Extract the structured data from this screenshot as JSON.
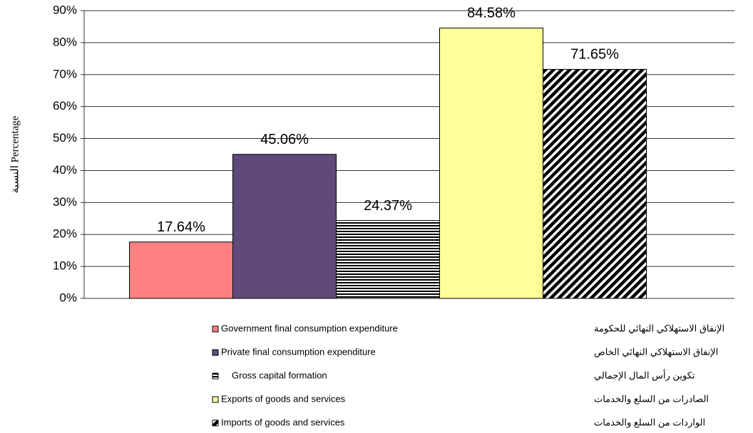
{
  "chart_data": {
    "type": "bar",
    "y_label": "النسبة Percentage",
    "categories": [
      null
    ],
    "series": [
      {
        "name": "Government final consumption expenditure",
        "name_ar": "الإنفاق الاستهلاكي النهائي للحكومة",
        "color": "#ff8080",
        "values": [
          17.64
        ],
        "value_labels": [
          "17.64%"
        ]
      },
      {
        "name": "Private final consumption expenditure",
        "name_ar": "الإنفاق الاستهلاكي النهائي الخاص",
        "color": "#604a7b",
        "values": [
          45.06
        ],
        "value_labels": [
          "45.06%"
        ]
      },
      {
        "name": "Gross capital formation",
        "name_ar": "تكوين رأس المال الإجمالي",
        "color": "#000000",
        "pattern": "horizontal-lines",
        "values": [
          24.37
        ],
        "value_labels": [
          "24.37%"
        ]
      },
      {
        "name": "Exports of goods and services",
        "name_ar": "الصادرات من السلع والخدمات",
        "color": "#ffff99",
        "values": [
          84.58
        ],
        "value_labels": [
          "84.58%"
        ]
      },
      {
        "name": "Imports of goods and services",
        "name_ar": "الواردات من السلع والخدمات",
        "color": "#4f7fc0",
        "pattern": "diagonal-lines",
        "values": [
          71.65
        ],
        "value_labels": [
          "71.65%"
        ]
      }
    ],
    "ylim": [
      0,
      90
    ],
    "yticks": [
      {
        "value": 0,
        "label": "0%"
      },
      {
        "value": 10,
        "label": "10%"
      },
      {
        "value": 20,
        "label": "20%"
      },
      {
        "value": 30,
        "label": "30%"
      },
      {
        "value": 40,
        "label": "40%"
      },
      {
        "value": 50,
        "label": "50%"
      },
      {
        "value": 60,
        "label": "60%"
      },
      {
        "value": 70,
        "label": "70%"
      },
      {
        "value": 80,
        "label": "80%"
      },
      {
        "value": 90,
        "label": "90%"
      }
    ],
    "grid": true,
    "legend": "bottom"
  }
}
